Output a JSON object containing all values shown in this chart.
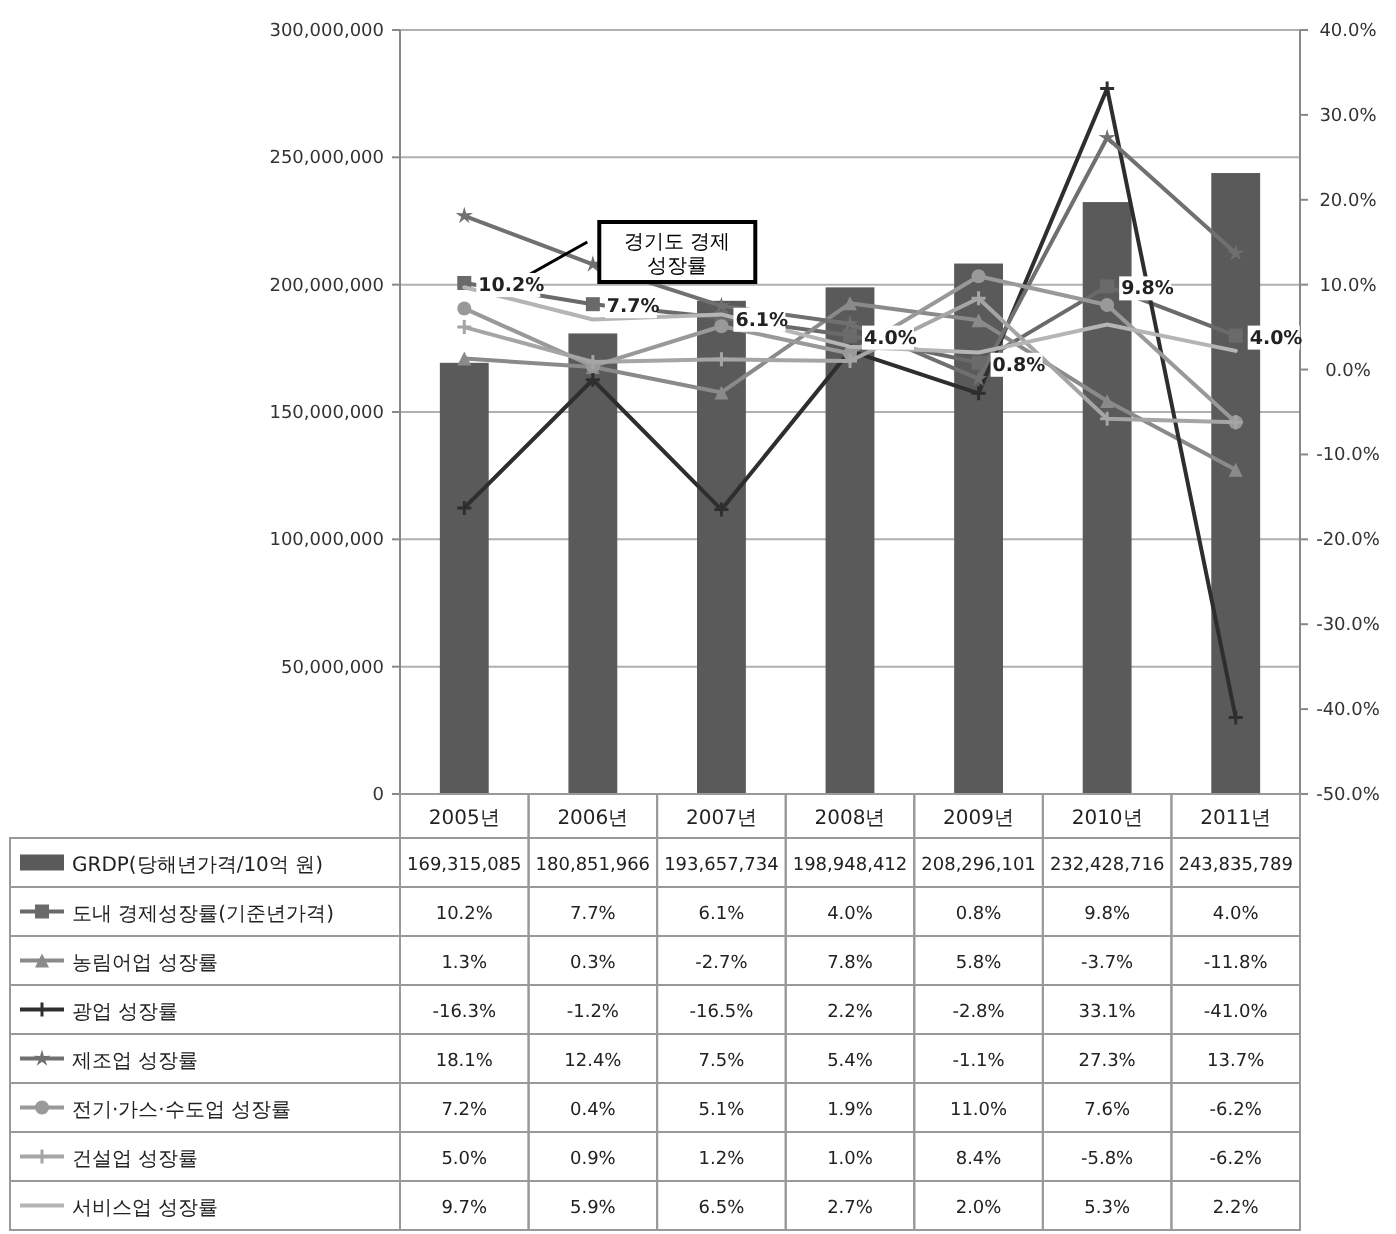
{
  "chart_data": {
    "type": "bar",
    "categories": [
      "2005년",
      "2006년",
      "2007년",
      "2008년",
      "2009년",
      "2010년",
      "2011년"
    ],
    "series": [
      {
        "name": "GRDP(당해년가격/10억 원)",
        "color": "#5a5a5a",
        "values": [
          169315085,
          180851966,
          193657734,
          198948412,
          208296101,
          232428716,
          243835789
        ],
        "value_labels": [
          "169,315,085",
          "180,851,966",
          "193,657,734",
          "198,948,412",
          "208,296,101",
          "232,428,716",
          "243,835,789"
        ]
      },
      {
        "name": "도내 경제성장률(기준년가격)",
        "type": "line",
        "axis": "y2",
        "color": "#6a6a6a",
        "marker": "square",
        "data_labels": true,
        "values": [
          10.2,
          7.7,
          6.1,
          4.0,
          0.8,
          9.8,
          4.0
        ],
        "value_labels": [
          "10.2%",
          "7.7%",
          "6.1%",
          "4.0%",
          "0.8%",
          "9.8%",
          "4.0%"
        ]
      },
      {
        "name": "농림어업 성장률",
        "type": "line",
        "axis": "y2",
        "color": "#8a8a8a",
        "marker": "triangle",
        "values": [
          1.3,
          0.3,
          -2.7,
          7.8,
          5.8,
          -3.7,
          -11.8
        ],
        "value_labels": [
          "1.3%",
          "0.3%",
          "-2.7%",
          "7.8%",
          "5.8%",
          "-3.7%",
          "-11.8%"
        ]
      },
      {
        "name": "광업 성장률",
        "type": "line",
        "axis": "y2",
        "color": "#2e2e2e",
        "marker": "cross",
        "values": [
          -16.3,
          -1.2,
          -16.5,
          2.2,
          -2.8,
          33.1,
          -41.0
        ],
        "value_labels": [
          "-16.3%",
          "-1.2%",
          "-16.5%",
          "2.2%",
          "-2.8%",
          "33.1%",
          "-41.0%"
        ]
      },
      {
        "name": "제조업 성장률",
        "type": "line",
        "axis": "y2",
        "color": "#707070",
        "marker": "star",
        "values": [
          18.1,
          12.4,
          7.5,
          5.4,
          -1.1,
          27.3,
          13.7
        ],
        "value_labels": [
          "18.1%",
          "12.4%",
          "7.5%",
          "5.4%",
          "-1.1%",
          "27.3%",
          "13.7%"
        ]
      },
      {
        "name": "전기·가스·수도업 성장률",
        "type": "line",
        "axis": "y2",
        "color": "#999999",
        "marker": "circle",
        "values": [
          7.2,
          0.4,
          5.1,
          1.9,
          11.0,
          7.6,
          -6.2
        ],
        "value_labels": [
          "7.2%",
          "0.4%",
          "5.1%",
          "1.9%",
          "11.0%",
          "7.6%",
          "-6.2%"
        ]
      },
      {
        "name": "건설업 성장률",
        "type": "line",
        "axis": "y2",
        "color": "#a5a5a5",
        "marker": "cross",
        "values": [
          5.0,
          0.9,
          1.2,
          1.0,
          8.4,
          -5.8,
          -6.2
        ],
        "value_labels": [
          "5.0%",
          "0.9%",
          "1.2%",
          "1.0%",
          "8.4%",
          "-5.8%",
          "-6.2%"
        ]
      },
      {
        "name": "서비스업 성장률",
        "type": "line",
        "axis": "y2",
        "color": "#b5b5b5",
        "marker": "none",
        "values": [
          9.7,
          5.9,
          6.5,
          2.7,
          2.0,
          5.3,
          2.2
        ],
        "value_labels": [
          "9.7%",
          "5.9%",
          "6.5%",
          "2.7%",
          "2.0%",
          "5.3%",
          "2.2%"
        ]
      }
    ],
    "ylim": [
      0,
      300000000
    ],
    "yticks": [
      {
        "value": 0,
        "label": "0"
      },
      {
        "value": 50000000,
        "label": "50,000,000"
      },
      {
        "value": 100000000,
        "label": "100,000,000"
      },
      {
        "value": 150000000,
        "label": "150,000,000"
      },
      {
        "value": 200000000,
        "label": "200,000,000"
      },
      {
        "value": 250000000,
        "label": "250,000,000"
      },
      {
        "value": 300000000,
        "label": "300,000,000"
      }
    ],
    "y2lim": [
      -50,
      40
    ],
    "y2ticks": [
      {
        "value": -50,
        "label": "-50.0%"
      },
      {
        "value": -40,
        "label": "-40.0%"
      },
      {
        "value": -30,
        "label": "-30.0%"
      },
      {
        "value": -20,
        "label": "-20.0%"
      },
      {
        "value": -10,
        "label": "-10.0%"
      },
      {
        "value": 0,
        "label": "0.0%"
      },
      {
        "value": 10,
        "label": "10.0%"
      },
      {
        "value": 20,
        "label": "20.0%"
      },
      {
        "value": 30,
        "label": "30.0%"
      },
      {
        "value": 40,
        "label": "40.0%"
      }
    ],
    "grid": "y",
    "legend": "bottom",
    "annotations": [
      "경기도 경제 성장률"
    ]
  }
}
